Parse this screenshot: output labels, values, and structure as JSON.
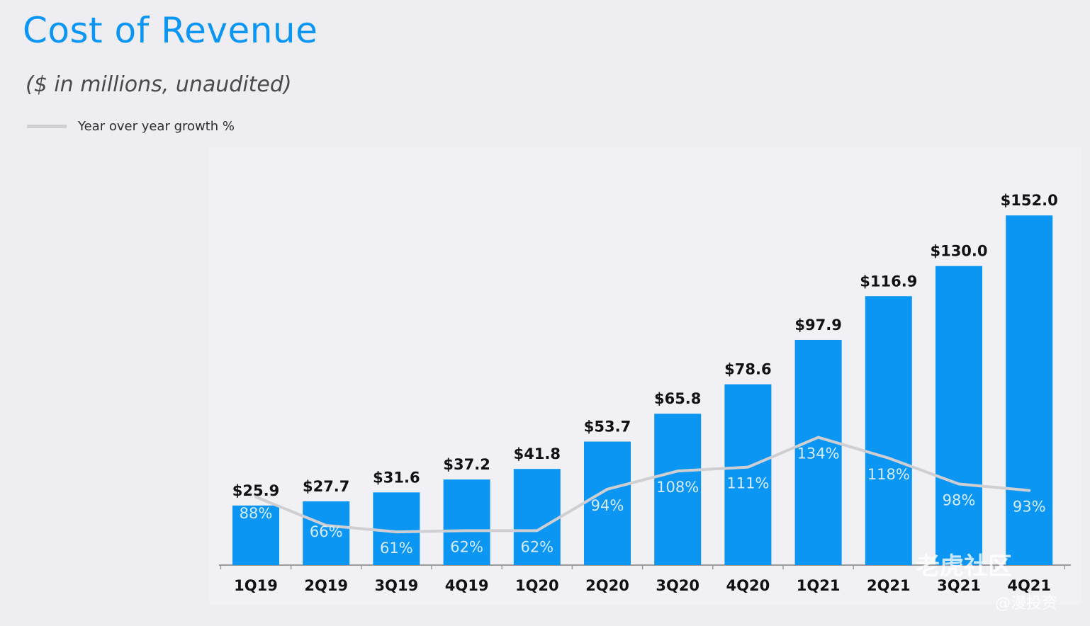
{
  "header": {
    "title": "Cost of Revenue",
    "subtitle": "($ in millions, unaudited)"
  },
  "legend": {
    "label": "Year over year growth %"
  },
  "watermark": {
    "line1": "老虎社区",
    "line2": "@漫投资"
  },
  "colors": {
    "bar": "#0a96f2",
    "growth_line": "#cfcfd3",
    "bar_label": "#111111",
    "pct_label": "#d7ecfb",
    "axis": "#9a9a9a"
  },
  "chart_data": {
    "type": "bar",
    "title": "Cost of Revenue",
    "subtitle": "($ in millions, unaudited)",
    "categories": [
      "1Q19",
      "2Q19",
      "3Q19",
      "4Q19",
      "1Q20",
      "2Q20",
      "3Q20",
      "4Q20",
      "1Q21",
      "2Q21",
      "3Q21",
      "4Q21"
    ],
    "series": [
      {
        "type": "bar",
        "values": [
          25.9,
          27.7,
          31.6,
          37.2,
          41.8,
          53.7,
          65.8,
          78.6,
          97.9,
          116.9,
          130.0,
          152.0
        ],
        "labels": [
          "$25.9",
          "$27.7",
          "$31.6",
          "$37.2",
          "$41.8",
          "$53.7",
          "$65.8",
          "$78.6",
          "$97.9",
          "$116.9",
          "$130.0",
          "$152.0"
        ]
      },
      {
        "name": "Year over year growth %",
        "type": "line",
        "values": [
          88,
          66,
          61,
          62,
          62,
          94,
          108,
          111,
          134,
          118,
          98,
          93
        ],
        "labels": [
          "88%",
          "66%",
          "61%",
          "62%",
          "62%",
          "94%",
          "108%",
          "111%",
          "134%",
          "118%",
          "98%",
          "93%"
        ]
      }
    ],
    "ylim": [
      0,
      165
    ],
    "legend_position": "top-left",
    "grid": false
  }
}
